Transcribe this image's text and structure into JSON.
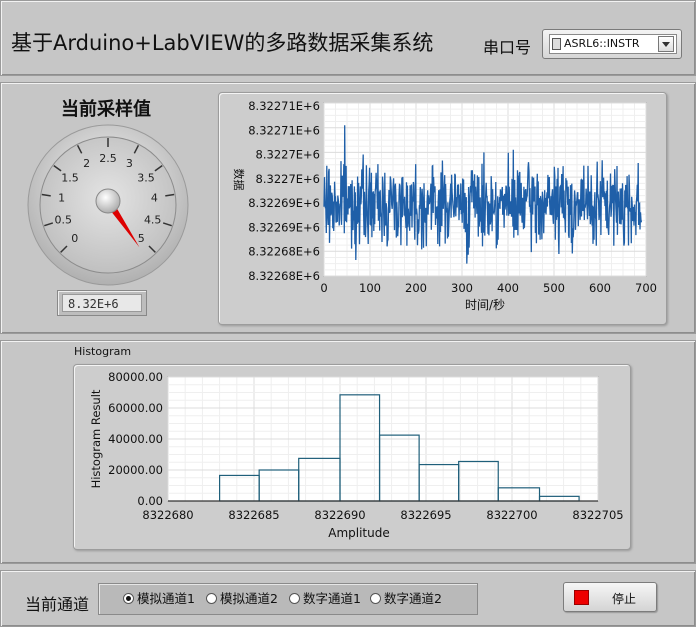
{
  "header": {
    "title": "基于Arduino+LabVIEW的多路数据采集系统",
    "port_label": "串口号",
    "port_value": "ASRL6::INSTR"
  },
  "gauge": {
    "title": "当前采样值",
    "ticks": [
      "0",
      "0.5",
      "1",
      "1.5",
      "2",
      "2.5",
      "3",
      "3.5",
      "4",
      "4.5",
      "5"
    ],
    "value": 5.2,
    "readout": "8.32E+6",
    "colors": {
      "needle": "#dd0000",
      "face": "#cfcfcf"
    }
  },
  "waveform": {
    "ylabel": "数据",
    "xlabel": "时间/秒",
    "yticks": [
      "8.32271E+6",
      "8.32271E+6",
      "8.3227E+6",
      "8.3227E+6",
      "8.32269E+6",
      "8.32269E+6",
      "8.32268E+6",
      "8.32268E+6"
    ],
    "xticks": [
      "0",
      "100",
      "200",
      "300",
      "400",
      "500",
      "600",
      "700"
    ]
  },
  "histogram": {
    "panel_label": "Histogram"
  },
  "bottom": {
    "channel_label": "当前通道",
    "options": [
      "模拟通道1",
      "模拟通道2",
      "数字通道1",
      "数字通道2"
    ],
    "selected": 0,
    "stop_label": "停止"
  },
  "chart_data": [
    {
      "type": "line",
      "ylabel": "数据",
      "xlabel": "时间/秒",
      "xlim": [
        0,
        700
      ],
      "ylim": [
        8322677.5,
        8322712.5
      ],
      "grid": true,
      "series": [
        {
          "x_start": 0,
          "x_end": 690,
          "points": 690,
          "min": 8322680,
          "max": 8322708,
          "mean": 8322692,
          "color": "#1f5fa8"
        }
      ]
    },
    {
      "type": "bar",
      "ylabel": "Histogram Result",
      "xlabel": "Amplitude",
      "xlim": [
        8322680,
        8322705
      ],
      "ylim": [
        0,
        80000
      ],
      "xticks": [
        "8322680",
        "8322685",
        "8322690",
        "8322695",
        "8322700",
        "8322705"
      ],
      "yticks": [
        "0.00",
        "20000.00",
        "40000.00",
        "60000.00",
        "80000.00"
      ],
      "grid": true,
      "bins": [
        {
          "x0": 8322683.0,
          "x1": 8322685.3,
          "value": 16500
        },
        {
          "x0": 8322685.3,
          "x1": 8322687.6,
          "value": 20000
        },
        {
          "x0": 8322687.6,
          "x1": 8322690.0,
          "value": 27500
        },
        {
          "x0": 8322690.0,
          "x1": 8322692.3,
          "value": 68500
        },
        {
          "x0": 8322692.3,
          "x1": 8322694.6,
          "value": 42500
        },
        {
          "x0": 8322694.6,
          "x1": 8322696.9,
          "value": 23500
        },
        {
          "x0": 8322696.9,
          "x1": 8322699.2,
          "value": 25500
        },
        {
          "x0": 8322699.2,
          "x1": 8322701.6,
          "value": 8500
        },
        {
          "x0": 8322701.6,
          "x1": 8322703.9,
          "value": 3000
        }
      ],
      "color": "#1f5f7a"
    }
  ]
}
